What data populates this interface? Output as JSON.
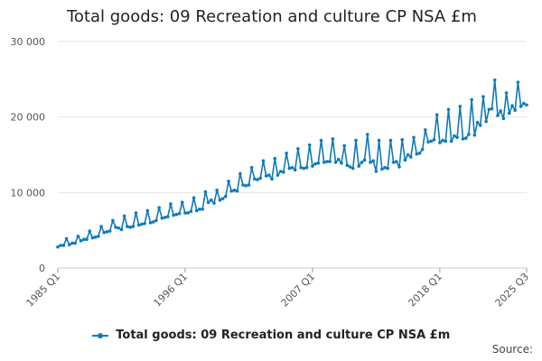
{
  "chart_data": {
    "type": "line",
    "title": "Total goods: 09 Recreation and culture CP NSA £m",
    "xlabel": "",
    "ylabel": "",
    "ylim": [
      0,
      30000
    ],
    "yticks": [
      0,
      10000,
      20000,
      30000
    ],
    "ytick_labels": [
      "0",
      "10 000",
      "20 000",
      "30 000"
    ],
    "xticks": [
      "1985 Q1",
      "1996 Q1",
      "2007 Q1",
      "2018 Q1",
      "2025 Q3"
    ],
    "x_start_year": 1985,
    "x_start_quarter": 1,
    "x_end_label": "2025 Q3",
    "grid": true,
    "legend_position": "bottom",
    "color": "#0f7ab8",
    "series": [
      {
        "name": "Total goods: 09 Recreation and culture CP NSA £m",
        "values": [
          2800,
          3000,
          3000,
          3900,
          3100,
          3300,
          3300,
          4200,
          3600,
          3800,
          3800,
          4900,
          4000,
          4100,
          4200,
          5500,
          4700,
          4800,
          4900,
          6300,
          5400,
          5300,
          5100,
          6900,
          5500,
          5400,
          5500,
          7300,
          5700,
          5800,
          5900,
          7600,
          6000,
          6100,
          6300,
          8000,
          6600,
          6700,
          6800,
          8500,
          7000,
          7100,
          7200,
          8700,
          7300,
          7300,
          7500,
          9300,
          7600,
          7800,
          7800,
          10100,
          8700,
          9000,
          8600,
          10300,
          9000,
          9200,
          9500,
          11500,
          10200,
          10300,
          10200,
          12500,
          11000,
          10900,
          11000,
          13300,
          11800,
          11700,
          11900,
          14200,
          12200,
          12300,
          11800,
          14500,
          12300,
          12800,
          12700,
          15200,
          13200,
          13300,
          13000,
          15800,
          13300,
          13200,
          13300,
          16300,
          13500,
          13800,
          13900,
          16900,
          14000,
          14100,
          14100,
          17100,
          14000,
          14400,
          13900,
          16200,
          13600,
          13400,
          13200,
          16900,
          13500,
          14000,
          14300,
          17700,
          14000,
          14200,
          12800,
          16900,
          13100,
          13300,
          13200,
          16900,
          14000,
          14100,
          13400,
          17000,
          14300,
          15000,
          14700,
          17300,
          15100,
          15200,
          15700,
          18300,
          16700,
          16800,
          17000,
          20300,
          16600,
          16900,
          16800,
          21000,
          16800,
          17500,
          17300,
          21400,
          17100,
          17200,
          17700,
          22300,
          17600,
          19300,
          18900,
          22700,
          19400,
          21000,
          21100,
          24900,
          20200,
          20800,
          19800,
          23200,
          20500,
          21500,
          20900,
          24600,
          21400,
          21800,
          21600
        ]
      }
    ]
  },
  "legend": {
    "label": "Total goods: 09 Recreation and culture CP NSA £m"
  },
  "source_label": "Source:"
}
